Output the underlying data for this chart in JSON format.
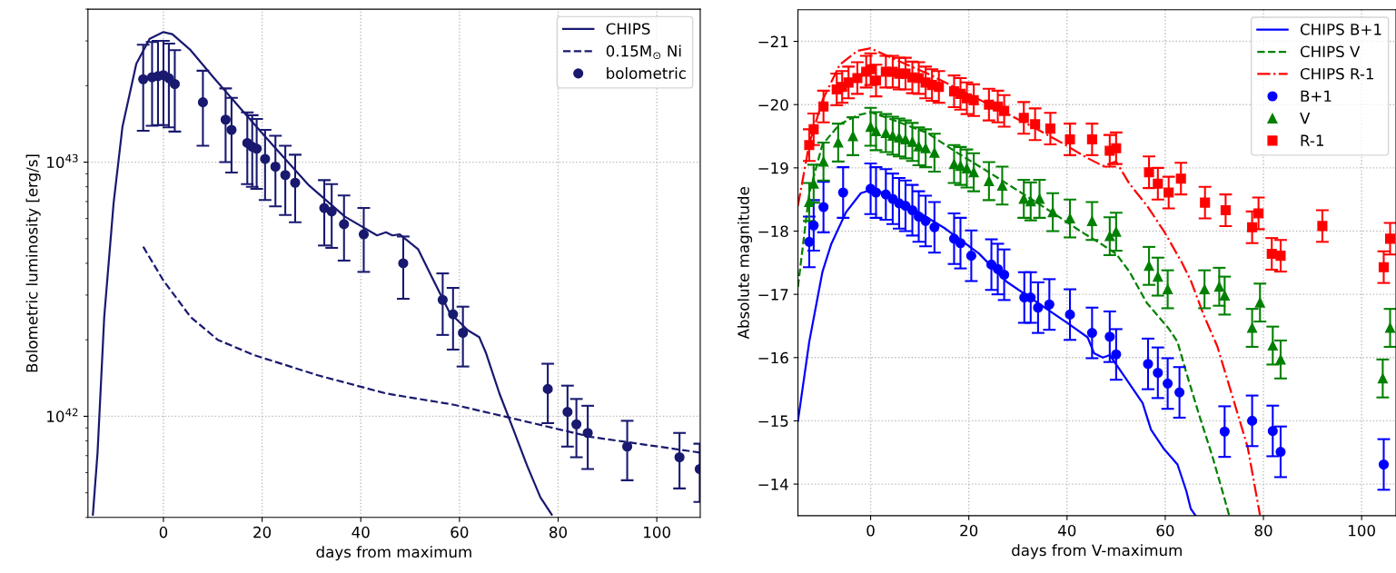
{
  "chart_data": [
    {
      "type": "line",
      "xlabel": "days from maximum",
      "ylabel": "Bolometric luminosity [erg/s]",
      "log": "y",
      "grid": true,
      "legend": "top right",
      "xlim": [
        -15.3,
        108.8
      ],
      "xticks": [
        0,
        20,
        40,
        60,
        80,
        100
      ],
      "ylim": [
        4e+41,
        4e+43
      ],
      "yticks": [
        {
          "value": 1e+42,
          "label": "10$^{42}$"
        },
        {
          "value": 1e+43,
          "label": "10$^{43}$"
        }
      ],
      "series": [
        {
          "name": "CHIPS",
          "type": "line",
          "color": "#191970",
          "line_style": "solid",
          "marker": "none",
          "x": [
            -14.3,
            -13.35,
            -12.0,
            -10.1,
            -8.3,
            -5.5,
            -2.8,
            0,
            1.8,
            5.5,
            10.1,
            15.7,
            22.1,
            29.5,
            36.8,
            43.3,
            45.1,
            46.4,
            47.9,
            51.6,
            54.3,
            58.0,
            61.7,
            64.0,
            65.4,
            68.1,
            70.9,
            73.7,
            76.4,
            78.7
          ],
          "values": [
            4.1e+41,
            7.2e+41,
            2.46e+42,
            6.9e+42,
            1.38e+43,
            2.44e+43,
            3.06e+43,
            3.25e+43,
            3.19e+43,
            2.76e+43,
            2.16e+43,
            1.62e+43,
            1.17e+43,
            8.1e+42,
            6.1e+42,
            5.15e+42,
            5.3e+42,
            5.15e+42,
            5.2e+42,
            4.55e+42,
            3.56e+42,
            2.56e+42,
            2.18e+42,
            2.05e+42,
            1.77e+42,
            1.23e+42,
            8.9e+41,
            6.4e+41,
            4.8e+41,
            4.1e+41
          ]
        },
        {
          "name": "0.15M$_{⊙}$ Ni",
          "type": "line",
          "color": "#191970",
          "line_style": "dashed",
          "marker": "none",
          "x": [
            -4.1,
            0,
            5.5,
            11.0,
            18.4,
            31.3,
            45.1,
            58.9,
            70.9,
            86.6,
            108.7
          ],
          "values": [
            4.65e+42,
            3.42e+42,
            2.46e+42,
            2e+42,
            1.74e+42,
            1.45e+42,
            1.23e+42,
            1.11e+42,
            9.8e+41,
            8.3e+41,
            7.2e+41
          ]
        },
        {
          "name": "bolometric",
          "type": "scatter",
          "color": "#191970",
          "marker": "circle",
          "x": [
            -4.1,
            -2.3,
            -1.1,
            0,
            1.1,
            2.3,
            8.0,
            12.6,
            13.8,
            17.0,
            18.0,
            18.9,
            20.6,
            22.7,
            24.7,
            26.7,
            32.6,
            34.1,
            36.6,
            40.6,
            48.6,
            56.6,
            58.7,
            60.7,
            77.9,
            81.9,
            83.7,
            86.0,
            94.0,
            104.6,
            108.7
          ],
          "values": [
            2.12e+43,
            2.16e+43,
            2.18e+43,
            2.2e+43,
            2.14e+43,
            2.03e+43,
            1.72e+43,
            1.47e+43,
            1.34e+43,
            1.19e+43,
            1.15e+43,
            1.13e+43,
            1.03e+43,
            9.6e+42,
            8.9e+42,
            8.3e+42,
            6.6e+42,
            6.4e+42,
            5.7e+42,
            5.2e+42,
            4e+42,
            2.87e+42,
            2.52e+42,
            2.13e+42,
            1.28e+42,
            1.04e+42,
            9.3e+41,
            8.6e+41,
            7.6e+41,
            6.9e+41,
            6.2e+41
          ],
          "errors": [
            [
              1.33e+43,
              2.9e+43
            ],
            [
              1.39e+43,
              2.97e+43
            ],
            [
              1.4e+43,
              3e+43
            ],
            [
              1.4e+43,
              3e+43
            ],
            [
              1.37e+43,
              2.93e+43
            ],
            [
              1.32e+43,
              2.76e+43
            ],
            [
              1.16e+43,
              2.29e+43
            ],
            [
              1e+43,
              1.95e+43
            ],
            [
              9.1e+42,
              1.79e+43
            ],
            [
              8.2e+42,
              1.57e+43
            ],
            [
              8e+42,
              1.53e+43
            ],
            [
              7.85e+42,
              1.48e+43
            ],
            [
              7.1e+42,
              1.34e+43
            ],
            [
              6.7e+42,
              1.27e+43
            ],
            [
              6.2e+42,
              1.16e+43
            ],
            [
              5.8e+42,
              1.07e+43
            ],
            [
              4.7e+42,
              8.5e+42
            ],
            [
              4.6e+42,
              8.2e+42
            ],
            [
              4.1e+42,
              7.4e+42
            ],
            [
              3.7e+42,
              6.6e+42
            ],
            [
              2.9e+42,
              5.1e+42
            ],
            [
              2.09e+42,
              3.65e+42
            ],
            [
              1.83e+42,
              3.2e+42
            ],
            [
              1.57e+42,
              2.7e+42
            ],
            [
              9.4e+41,
              1.61e+42
            ],
            [
              7.6e+41,
              1.32e+42
            ],
            [
              6.9e+41,
              1.17e+42
            ],
            [
              6.2e+41,
              1.1e+42
            ],
            [
              5.6e+41,
              9.6e+41
            ],
            [
              5.2e+41,
              8.6e+41
            ],
            [
              4.6e+41,
              7.8e+41
            ]
          ]
        }
      ]
    },
    {
      "type": "line",
      "xlabel": "days from V-maximum",
      "ylabel": "Absolute magnitude",
      "grid": true,
      "legend": "top right",
      "xlim": [
        -14.8,
        107
      ],
      "xticks": [
        0,
        20,
        40,
        60,
        80,
        100
      ],
      "ylim": [
        -13.5,
        -21.5
      ],
      "yticks": [
        {
          "value": -14,
          "label": "−14"
        },
        {
          "value": -15,
          "label": "−15"
        },
        {
          "value": -16,
          "label": "−16"
        },
        {
          "value": -17,
          "label": "−17"
        },
        {
          "value": -18,
          "label": "−18"
        },
        {
          "value": -19,
          "label": "−19"
        },
        {
          "value": -20,
          "label": "−20"
        },
        {
          "value": -21,
          "label": "−21"
        }
      ],
      "series": [
        {
          "name": "CHIPS B+1",
          "type": "line",
          "color": "#0000ff",
          "line_style": "solid",
          "marker": "none",
          "x": [
            -14.8,
            -12.5,
            -9.8,
            -8,
            -5,
            -2,
            0,
            3,
            8,
            15,
            22,
            27.7,
            40.2,
            44.2,
            45.5,
            47.3,
            48.7,
            51.8,
            55.4,
            57.1,
            59.8,
            62.5,
            64.3,
            65.2,
            66.1
          ],
          "values": [
            -15.0,
            -16.25,
            -17.36,
            -17.8,
            -18.3,
            -18.6,
            -18.65,
            -18.6,
            -18.38,
            -18.05,
            -17.65,
            -17.2,
            -16.54,
            -16.32,
            -16.07,
            -16.0,
            -16.04,
            -15.69,
            -15.28,
            -14.86,
            -14.55,
            -14.31,
            -13.89,
            -13.61,
            -13.51
          ]
        },
        {
          "name": "CHIPS V",
          "type": "line",
          "color": "#008000",
          "line_style": "dashed",
          "marker": "none",
          "x": [
            -14.8,
            -12.5,
            -9.8,
            -6.3,
            -2.7,
            0,
            4.5,
            11.6,
            17.0,
            24.1,
            31.2,
            37.5,
            42.9,
            47.3,
            50.0,
            52.7,
            56.2,
            60.7,
            62.5,
            64.3,
            67.0,
            69.6,
            71.9,
            73.0
          ],
          "values": [
            -17.12,
            -18.6,
            -19.37,
            -19.69,
            -19.83,
            -19.88,
            -19.76,
            -19.55,
            -19.27,
            -18.93,
            -18.58,
            -18.27,
            -17.99,
            -17.78,
            -17.64,
            -17.36,
            -16.87,
            -16.46,
            -16.25,
            -15.76,
            -15.07,
            -14.44,
            -13.82,
            -13.51
          ]
        },
        {
          "name": "CHIPS R-1",
          "type": "line",
          "color": "#ff0000",
          "line_style": "dashdot",
          "marker": "none",
          "x": [
            -14.8,
            -12.5,
            -9.8,
            -6.3,
            -2.7,
            0,
            4.5,
            11.6,
            18.8,
            25.9,
            33.0,
            39.3,
            43.8,
            47.3,
            50.0,
            52.7,
            56.3,
            59.8,
            63.4,
            65.2,
            67.9,
            70.6,
            74.1,
            76.8,
            79.3
          ],
          "values": [
            -18.4,
            -19.38,
            -20.07,
            -20.63,
            -20.85,
            -20.89,
            -20.73,
            -20.49,
            -20.21,
            -19.93,
            -19.65,
            -19.38,
            -19.17,
            -19.03,
            -19.1,
            -18.75,
            -18.4,
            -17.99,
            -17.5,
            -17.22,
            -16.66,
            -16.18,
            -15.28,
            -14.58,
            -13.51
          ]
        },
        {
          "name": "B+1",
          "type": "scatter",
          "color": "#0000ff",
          "marker": "circle",
          "x": [
            -12.5,
            -11.6,
            -9.6,
            -5.6,
            0,
            1.1,
            3.1,
            4.5,
            5.8,
            7.1,
            8.5,
            9.8,
            11.2,
            13.0,
            17.0,
            18.3,
            20.5,
            24.6,
            25.9,
            27.2,
            31.3,
            32.6,
            34.1,
            36.4,
            40.6,
            45.1,
            48.7,
            50.0,
            56.5,
            58.5,
            60.5,
            62.9,
            72.1,
            77.7,
            81.9,
            83.5,
            104.5
          ],
          "values": [
            -17.83,
            -18.09,
            -18.38,
            -18.61,
            -18.67,
            -18.61,
            -18.58,
            -18.51,
            -18.44,
            -18.4,
            -18.33,
            -18.23,
            -18.16,
            -18.06,
            -17.88,
            -17.81,
            -17.61,
            -17.47,
            -17.4,
            -17.31,
            -16.95,
            -16.95,
            -16.79,
            -16.84,
            -16.68,
            -16.39,
            -16.33,
            -16.05,
            -15.9,
            -15.76,
            -15.59,
            -15.45,
            -14.83,
            -15.0,
            -14.84,
            -14.51,
            -14.31
          ],
          "errors": [
            0.4,
            0.4,
            0.4,
            0.4,
            0.4,
            0.4,
            0.4,
            0.4,
            0.4,
            0.4,
            0.4,
            0.4,
            0.4,
            0.4,
            0.4,
            0.4,
            0.4,
            0.4,
            0.4,
            0.4,
            0.4,
            0.4,
            0.4,
            0.4,
            0.4,
            0.4,
            0.4,
            0.4,
            0.4,
            0.4,
            0.4,
            0.4,
            0.4,
            0.4,
            0.4,
            0.4,
            0.4
          ]
        },
        {
          "name": "V",
          "type": "scatter",
          "color": "#008000",
          "marker": "triangle",
          "x": [
            -12.5,
            -11.6,
            -9.6,
            -6.6,
            -3.6,
            0,
            1.1,
            3.1,
            4.5,
            5.8,
            7.1,
            8.5,
            9.8,
            11.2,
            13.0,
            17.0,
            18.3,
            19.6,
            21.0,
            24.1,
            26.8,
            31.2,
            32.6,
            34.4,
            37.1,
            40.6,
            45.1,
            48.7,
            50.0,
            56.7,
            58.5,
            60.5,
            68.0,
            71.0,
            72.1,
            77.7,
            79.3,
            81.9,
            83.5,
            104.3,
            105.8
          ],
          "values": [
            -18.46,
            -18.75,
            -19.1,
            -19.4,
            -19.5,
            -19.65,
            -19.58,
            -19.55,
            -19.51,
            -19.48,
            -19.45,
            -19.41,
            -19.34,
            -19.31,
            -19.24,
            -19.06,
            -19.03,
            -18.99,
            -18.93,
            -18.79,
            -18.72,
            -18.51,
            -18.47,
            -18.51,
            -18.3,
            -18.2,
            -18.16,
            -17.92,
            -17.99,
            -17.45,
            -17.28,
            -17.08,
            -17.08,
            -17.12,
            -16.98,
            -16.47,
            -16.87,
            -16.19,
            -15.97,
            -15.67,
            -16.47
          ],
          "errors": [
            0.3,
            0.3,
            0.3,
            0.3,
            0.3,
            0.3,
            0.3,
            0.3,
            0.3,
            0.3,
            0.3,
            0.3,
            0.3,
            0.3,
            0.3,
            0.3,
            0.3,
            0.3,
            0.3,
            0.3,
            0.3,
            0.3,
            0.3,
            0.3,
            0.3,
            0.3,
            0.3,
            0.3,
            0.3,
            0.3,
            0.3,
            0.3,
            0.3,
            0.3,
            0.3,
            0.3,
            0.3,
            0.3,
            0.3,
            0.3,
            0.3
          ]
        },
        {
          "name": "R-1",
          "type": "scatter",
          "color": "#ff0000",
          "marker": "square",
          "x": [
            -12.5,
            -11.6,
            -9.6,
            -6.9,
            -5.8,
            -4.5,
            -2.7,
            -0.9,
            0,
            1.1,
            3.1,
            4.5,
            5.8,
            7.1,
            8.5,
            9.8,
            11.2,
            12.5,
            13.9,
            17.0,
            18.3,
            19.6,
            21.0,
            24.1,
            25.9,
            27.2,
            31.2,
            33.5,
            36.6,
            40.6,
            45.1,
            48.7,
            50.0,
            56.7,
            58.5,
            60.7,
            63.2,
            68.1,
            72.3,
            77.7,
            79.0,
            81.7,
            83.5,
            92.0,
            104.5,
            105.8
          ],
          "values": [
            -19.36,
            -19.61,
            -19.97,
            -20.24,
            -20.28,
            -20.35,
            -20.42,
            -20.52,
            -20.56,
            -20.38,
            -20.52,
            -20.52,
            -20.49,
            -20.49,
            -20.43,
            -20.42,
            -20.35,
            -20.31,
            -20.28,
            -20.21,
            -20.17,
            -20.1,
            -20.07,
            -20.0,
            -19.97,
            -19.9,
            -19.79,
            -19.69,
            -19.62,
            -19.45,
            -19.45,
            -19.27,
            -19.31,
            -18.93,
            -18.75,
            -18.61,
            -18.83,
            -18.45,
            -18.33,
            -18.06,
            -18.28,
            -17.64,
            -17.61,
            -18.08,
            -17.43,
            -17.88
          ],
          "errors": [
            0.25,
            0.25,
            0.25,
            0.25,
            0.25,
            0.25,
            0.25,
            0.25,
            0.25,
            0.25,
            0.25,
            0.25,
            0.25,
            0.25,
            0.25,
            0.25,
            0.25,
            0.25,
            0.25,
            0.25,
            0.25,
            0.25,
            0.25,
            0.25,
            0.25,
            0.25,
            0.25,
            0.25,
            0.25,
            0.25,
            0.25,
            0.25,
            0.25,
            0.25,
            0.25,
            0.25,
            0.25,
            0.25,
            0.25,
            0.25,
            0.25,
            0.25,
            0.25,
            0.25,
            0.25,
            0.25
          ]
        }
      ]
    }
  ]
}
